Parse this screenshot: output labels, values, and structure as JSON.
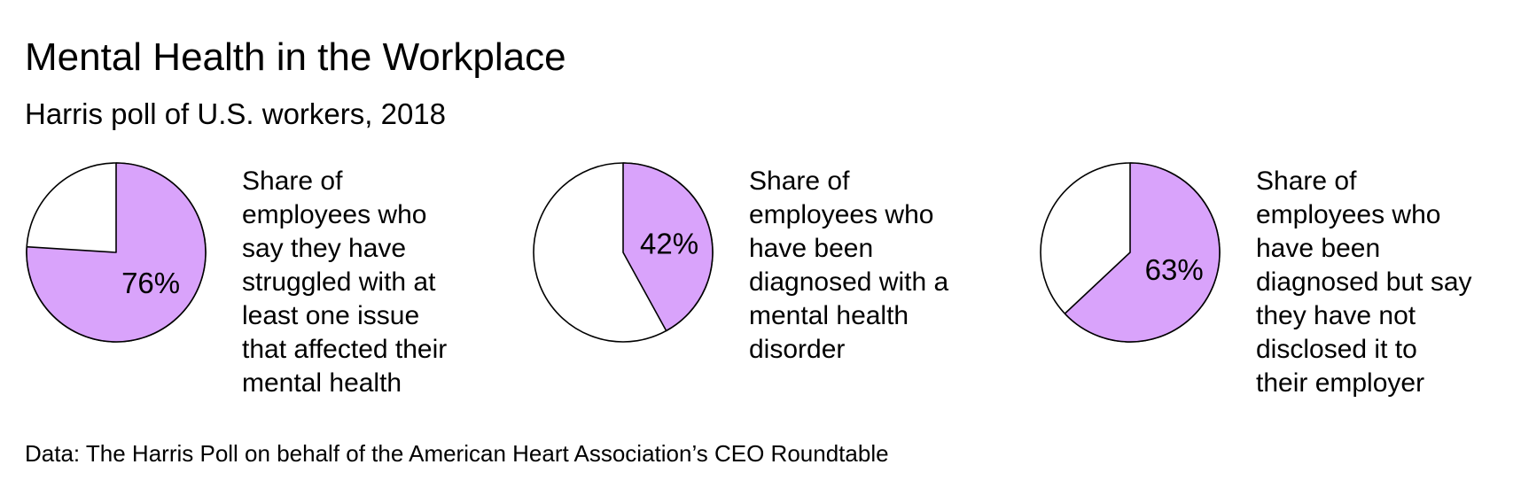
{
  "title": "Mental Health in the Workplace",
  "subtitle": "Harris poll of U.S. workers, 2018",
  "source": "Data: The Harris Poll on behalf of the American Heart Association’s CEO Roundtable",
  "chart_data": [
    {
      "type": "pie",
      "values": [
        76
      ],
      "value_labels": [
        "76%"
      ],
      "color": "#d9a3fb",
      "description": [
        "Share of",
        "employees who",
        "say they have",
        "struggled with at",
        "least one issue",
        "that affected their",
        "mental health"
      ]
    },
    {
      "type": "pie",
      "values": [
        42
      ],
      "value_labels": [
        "42%"
      ],
      "color": "#d9a3fb",
      "description": [
        "Share of",
        "employees who",
        "have been",
        "diagnosed with a",
        "mental health",
        "disorder"
      ]
    },
    {
      "type": "pie",
      "values": [
        63
      ],
      "value_labels": [
        "63%"
      ],
      "color": "#d9a3fb",
      "description": [
        "Share of",
        "employees who",
        "have been",
        "diagnosed but say",
        "they have not",
        "disclosed it to",
        "their employer"
      ]
    }
  ]
}
